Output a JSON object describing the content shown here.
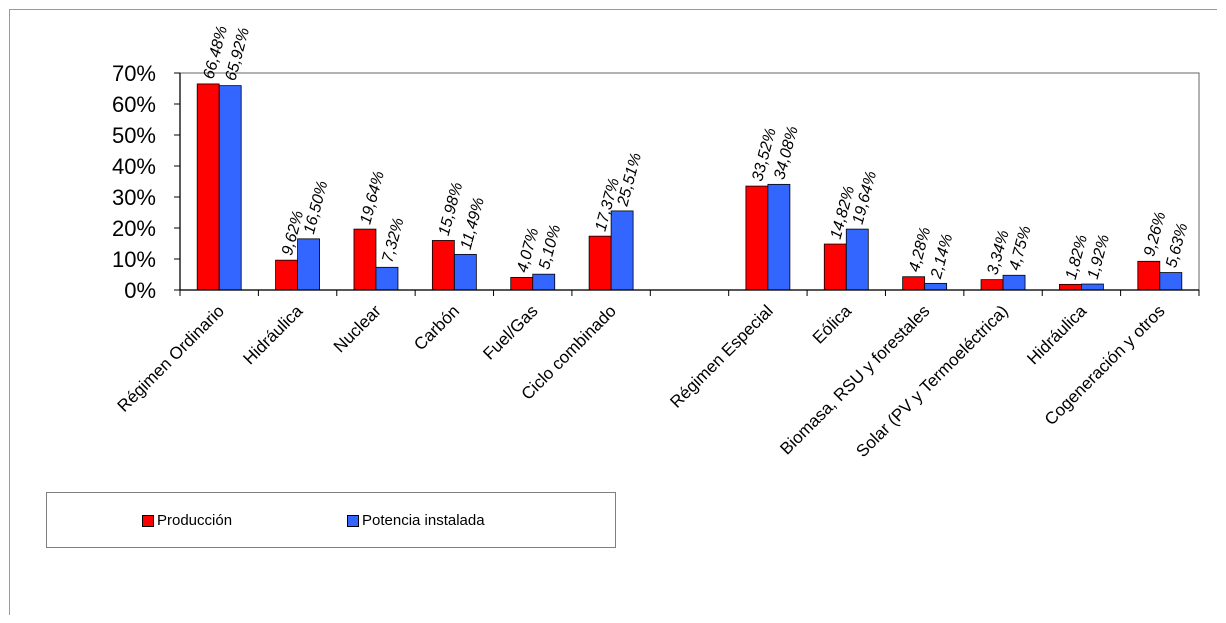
{
  "chart_data": {
    "type": "bar",
    "categories": [
      "Régimen Ordinario",
      "Hidráulica",
      "Nuclear",
      "Carbón",
      "Fuel/Gas",
      "Ciclo combinado",
      "",
      "Régimen Especial",
      "Eólica",
      "Biomasa, RSU y forestales",
      "Solar (PV y Termoeléctrica)",
      "Hidráulica",
      "Cogeneración y otros"
    ],
    "series": [
      {
        "name": "Producción",
        "color": "#ff0000",
        "values": [
          66.48,
          9.62,
          19.64,
          15.98,
          4.07,
          17.37,
          null,
          33.52,
          14.82,
          4.28,
          3.34,
          1.82,
          9.26
        ],
        "labels": [
          "66,48%",
          "9,62%",
          "19,64%",
          "15,98%",
          "4,07%",
          "17,37%",
          "",
          "33,52%",
          "14,82%",
          "4,28%",
          "3,34%",
          "1,82%",
          "9,26%"
        ]
      },
      {
        "name": "Potencia instalada",
        "color": "#3366ff",
        "values": [
          65.92,
          16.5,
          7.32,
          11.49,
          5.1,
          25.51,
          null,
          34.08,
          19.64,
          2.14,
          4.75,
          1.92,
          5.63
        ],
        "labels": [
          "65,92%",
          "16,50%",
          "7,32%",
          "11,49%",
          "5,10%",
          "25,51%",
          "",
          "34,08%",
          "19,64%",
          "2,14%",
          "4,75%",
          "1,92%",
          "5,63%"
        ]
      }
    ],
    "ylim": [
      0,
      70
    ],
    "yticks": [
      "0%",
      "10%",
      "20%",
      "30%",
      "40%",
      "50%",
      "60%",
      "70%"
    ],
    "legend": "bottom-left"
  },
  "legend": {
    "items": [
      {
        "label": "Producción",
        "color": "#ff0000"
      },
      {
        "label": "Potencia instalada",
        "color": "#3366ff"
      }
    ]
  }
}
